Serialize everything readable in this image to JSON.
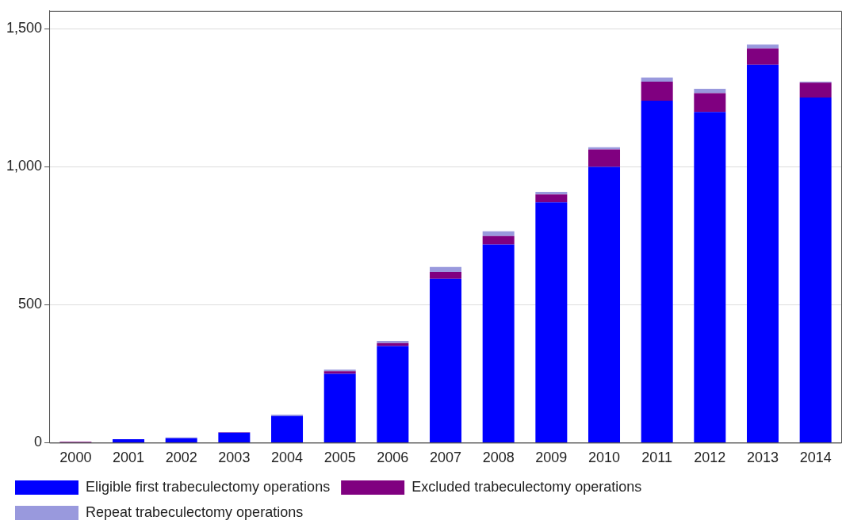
{
  "chart_data": {
    "type": "bar",
    "stacked": true,
    "categories": [
      "2000",
      "2001",
      "2002",
      "2003",
      "2004",
      "2005",
      "2006",
      "2007",
      "2008",
      "2009",
      "2010",
      "2011",
      "2012",
      "2013",
      "2014"
    ],
    "series": [
      {
        "name": "Eligible first trabeculectomy operations",
        "color": "#0000ff",
        "values": [
          0,
          13,
          16,
          36,
          97,
          250,
          350,
          594,
          718,
          871,
          1000,
          1240,
          1199,
          1370,
          1251
        ]
      },
      {
        "name": "Excluded trabeculectomy operations",
        "color": "#800080",
        "values": [
          3,
          0,
          0,
          2,
          0,
          9,
          11,
          25,
          31,
          29,
          63,
          69,
          68,
          59,
          54
        ]
      },
      {
        "name": "Repeat trabeculectomy operations",
        "color": "#9999dd",
        "values": [
          0,
          0,
          3,
          0,
          5,
          6,
          8,
          18,
          17,
          9,
          8,
          15,
          16,
          14,
          4
        ]
      }
    ],
    "ylim": [
      0,
      1565
    ],
    "yticks": [
      0,
      500,
      {
        "value": 1000,
        "label": "1,000"
      },
      {
        "value": 1500,
        "label": "1,500"
      }
    ],
    "grid": "y",
    "legend": "bottom"
  }
}
